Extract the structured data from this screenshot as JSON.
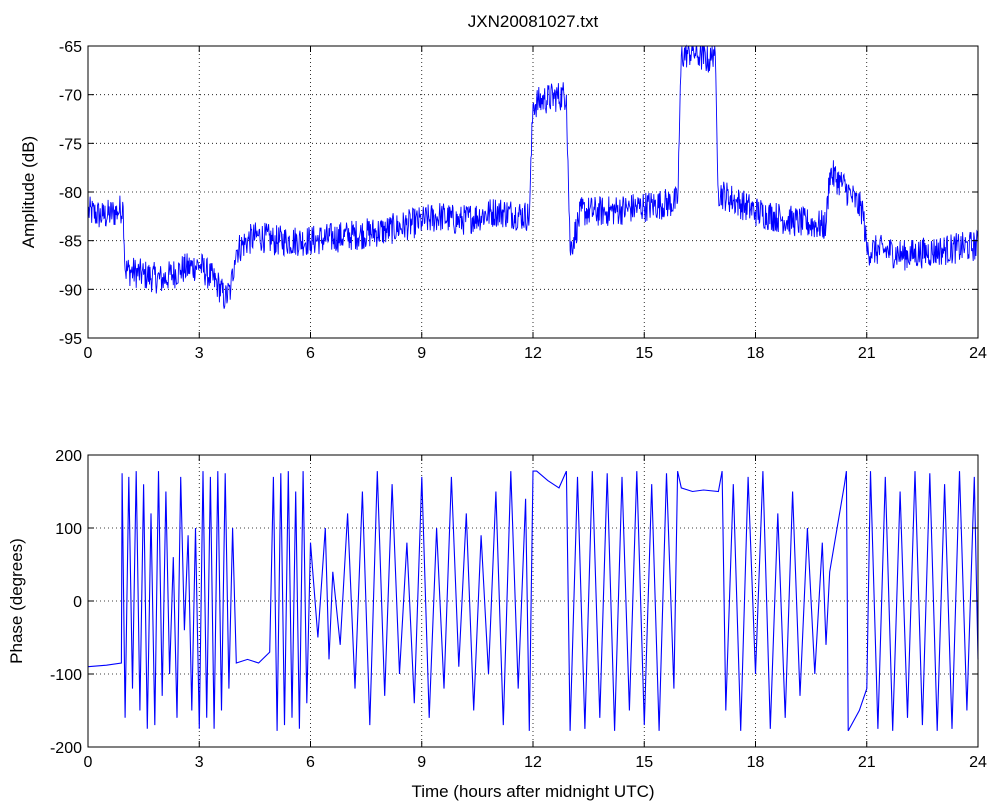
{
  "title": "JXN20081027.txt",
  "colors": {
    "series": "#0000ff",
    "axes": "#000000",
    "background": "#ffffff"
  },
  "chart_data": [
    {
      "type": "line",
      "ylabel": "Amplitude (dB)",
      "xlabel": "",
      "xlim": [
        0,
        24
      ],
      "ylim": [
        -95,
        -65
      ],
      "xticks": [
        0,
        3,
        6,
        9,
        12,
        15,
        18,
        21,
        24
      ],
      "yticks": [
        -95,
        -90,
        -85,
        -80,
        -75,
        -70,
        -65
      ],
      "grid": true,
      "series": [
        {
          "x": [
            0,
            0.4,
            0.8,
            0.95,
            1.0,
            1.5,
            2.0,
            2.5,
            3.0,
            3.5,
            3.7,
            3.85,
            3.95,
            4.0,
            4.3,
            4.6,
            5.0,
            6.0,
            7.0,
            8.0,
            9.0,
            9.5,
            10.0,
            11.0,
            11.9,
            12.0,
            12.3,
            12.9,
            13.0,
            13.3,
            14.0,
            15.0,
            15.9,
            16.0,
            16.3,
            16.5,
            16.8,
            16.9,
            17.0,
            17.5,
            18.0,
            19.0,
            19.9,
            20.0,
            20.3,
            20.6,
            20.9,
            21.0,
            21.5,
            22.0,
            23.0,
            24.0
          ],
          "y": [
            -82,
            -82.5,
            -82,
            -81.5,
            -88,
            -88.5,
            -89,
            -88,
            -87.5,
            -89.5,
            -91,
            -90,
            -87,
            -86,
            -85,
            -84.5,
            -85,
            -85,
            -84.5,
            -84,
            -83,
            -82.5,
            -83,
            -82,
            -82.5,
            -71,
            -70.5,
            -70,
            -86,
            -82,
            -82,
            -81.5,
            -81,
            -66,
            -65.5,
            -66,
            -66.5,
            -65,
            -80,
            -81,
            -82,
            -83,
            -83.5,
            -78,
            -79,
            -80.5,
            -82,
            -86,
            -86,
            -86.5,
            -86,
            -85.5
          ]
        }
      ]
    },
    {
      "type": "line",
      "ylabel": "Phase (degrees)",
      "xlabel": "Time (hours after midnight UTC)",
      "xlim": [
        0,
        24
      ],
      "ylim": [
        -200,
        200
      ],
      "xticks": [
        0,
        3,
        6,
        9,
        12,
        15,
        18,
        21,
        24
      ],
      "yticks": [
        -200,
        -100,
        0,
        100,
        200
      ],
      "grid": true,
      "series": [
        {
          "x": [
            0,
            0.5,
            0.9,
            0.92,
            1.0,
            1.1,
            1.2,
            1.3,
            1.4,
            1.5,
            1.6,
            1.7,
            1.8,
            1.9,
            2.0,
            2.1,
            2.2,
            2.3,
            2.4,
            2.5,
            2.6,
            2.7,
            2.8,
            2.9,
            3.0,
            3.1,
            3.2,
            3.3,
            3.4,
            3.5,
            3.6,
            3.7,
            3.8,
            3.9,
            4.0,
            4.3,
            4.6,
            4.9,
            5.0,
            5.1,
            5.2,
            5.3,
            5.4,
            5.5,
            5.6,
            5.7,
            5.8,
            5.9,
            6.0,
            6.2,
            6.4,
            6.5,
            6.6,
            6.8,
            7.0,
            7.2,
            7.4,
            7.6,
            7.8,
            8.0,
            8.2,
            8.4,
            8.6,
            8.8,
            9.0,
            9.2,
            9.4,
            9.6,
            9.8,
            10.0,
            10.2,
            10.4,
            10.6,
            10.8,
            11.0,
            11.2,
            11.4,
            11.6,
            11.8,
            11.9,
            12.0,
            12.1,
            12.4,
            12.7,
            12.9,
            13.0,
            13.2,
            13.4,
            13.6,
            13.8,
            14.0,
            14.2,
            14.4,
            14.6,
            14.8,
            15.0,
            15.2,
            15.4,
            15.6,
            15.8,
            15.9,
            16.0,
            16.3,
            16.6,
            17.0,
            17.1,
            17.2,
            17.4,
            17.6,
            17.8,
            18.0,
            18.2,
            18.4,
            18.6,
            18.8,
            19.0,
            19.2,
            19.4,
            19.6,
            19.8,
            19.9,
            20.0,
            20.2,
            20.4,
            20.45,
            20.5,
            20.8,
            21.0,
            21.1,
            21.3,
            21.5,
            21.7,
            21.9,
            22.1,
            22.3,
            22.5,
            22.7,
            22.9,
            23.1,
            23.3,
            23.5,
            23.7,
            23.9,
            24.0
          ],
          "y": [
            -90,
            -88,
            -85,
            175,
            -160,
            170,
            -120,
            178,
            -150,
            160,
            -175,
            120,
            -170,
            178,
            -130,
            150,
            -100,
            60,
            -160,
            170,
            -40,
            90,
            -150,
            100,
            -175,
            178,
            -160,
            170,
            -175,
            178,
            -150,
            175,
            -120,
            100,
            -85,
            -80,
            -85,
            -70,
            170,
            -178,
            175,
            -170,
            178,
            -160,
            150,
            -175,
            178,
            -140,
            80,
            -50,
            100,
            -80,
            40,
            -60,
            120,
            -120,
            150,
            -170,
            178,
            -130,
            160,
            -100,
            80,
            -140,
            170,
            -160,
            100,
            -120,
            170,
            -90,
            120,
            -150,
            90,
            -100,
            150,
            -170,
            178,
            -120,
            140,
            -178,
            178,
            178,
            165,
            155,
            178,
            -178,
            170,
            -175,
            178,
            -160,
            175,
            -178,
            170,
            -150,
            178,
            -170,
            160,
            -178,
            175,
            -120,
            178,
            155,
            150,
            152,
            150,
            178,
            -150,
            160,
            -178,
            170,
            -100,
            178,
            -175,
            120,
            -160,
            150,
            -130,
            100,
            -100,
            80,
            -60,
            40,
            100,
            160,
            178,
            -178,
            -150,
            -120,
            178,
            -175,
            170,
            -178,
            150,
            -160,
            178,
            -170,
            175,
            -178,
            160,
            -175,
            178,
            -150,
            170,
            -80
          ]
        }
      ]
    }
  ]
}
